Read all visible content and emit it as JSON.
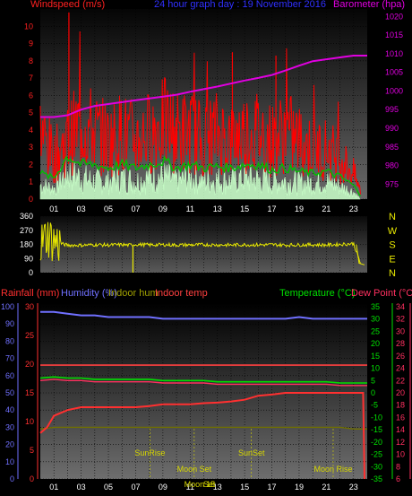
{
  "header": {
    "left_title": "Windspeed (m/s)",
    "center_title": "24 hour graph day : 19 November 2016",
    "right_title": "Barometer (hpa)"
  },
  "colors": {
    "background": "#000000",
    "panel_top": "#050505",
    "panel_bottom": "#707070",
    "grid": "#000000",
    "wind_gust": "#ff0000",
    "wind_avg": "#00c000",
    "wind_speed": "#c8ffc8",
    "barometer": "#e000e0",
    "direction": "#e8e800",
    "rainfall": "#ff3030",
    "humidity": "#7070ff",
    "indoor_hum": "#707000",
    "indoor_temp": "#ff4040",
    "temperature": "#00e000",
    "dew_point": "#ff3060",
    "astro_text": "#d8d800"
  },
  "x_hours": [
    "01",
    "03",
    "05",
    "07",
    "09",
    "11",
    "13",
    "15",
    "17",
    "19",
    "21",
    "23"
  ],
  "chart_data": [
    {
      "type": "line",
      "panel": "wind",
      "title": "24 hour graph day : 19 November 2016",
      "y_left_label": "Windspeed (m/s)",
      "y_left_ticks": [
        "0",
        "1",
        "2",
        "3",
        "4",
        "5",
        "6",
        "7",
        "8",
        "9",
        "10"
      ],
      "y_left_range": [
        0,
        11
      ],
      "y_right_label": "Barometer (hpa)",
      "y_right_ticks": [
        "975",
        "980",
        "985",
        "990",
        "995",
        "1000",
        "1005",
        "1010",
        "1015",
        "1020"
      ],
      "y_right_range": [
        971,
        1022
      ],
      "x_range_hours": [
        0,
        24
      ],
      "x_ticks": [
        "01",
        "03",
        "05",
        "07",
        "09",
        "11",
        "13",
        "15",
        "17",
        "19",
        "21",
        "23"
      ],
      "series": [
        {
          "key": "barometer",
          "x": [
            0,
            1,
            2,
            3,
            4,
            5,
            6,
            7,
            8,
            9,
            10,
            11,
            12,
            13,
            14,
            15,
            16,
            17,
            18,
            19,
            20,
            21,
            22,
            23,
            24
          ],
          "values": [
            993,
            993,
            993.5,
            995,
            996,
            996.5,
            997,
            997.5,
            998,
            998.5,
            999,
            999.8,
            1000.5,
            1001.2,
            1002,
            1002.8,
            1003.5,
            1004.3,
            1005.5,
            1006.8,
            1008,
            1008.5,
            1009,
            1009.5,
            1009.5
          ]
        },
        {
          "key": "wind_gust",
          "x": [
            0,
            1,
            2,
            3,
            4,
            5,
            6,
            7,
            8,
            9,
            10,
            11,
            12,
            13,
            14,
            15,
            16,
            17,
            18,
            19,
            20,
            21,
            22,
            23,
            23.5
          ],
          "values": [
            4,
            2.5,
            3.5,
            4.5,
            4,
            3.5,
            4,
            3.5,
            4,
            4.5,
            4,
            4,
            3.5,
            4,
            3.5,
            4,
            4,
            3.5,
            4,
            3.5,
            3,
            3,
            2.5,
            1.5,
            0.5
          ]
        },
        {
          "key": "wind_avg",
          "x": [
            0,
            1,
            2,
            3,
            4,
            5,
            6,
            7,
            8,
            9,
            10,
            11,
            12,
            13,
            14,
            15,
            16,
            17,
            18,
            19,
            20,
            21,
            22,
            23,
            23.5
          ],
          "values": [
            1.5,
            1.2,
            2.5,
            2,
            2,
            1.8,
            2,
            1.8,
            2,
            2.2,
            1.8,
            2,
            1.8,
            1.9,
            1.8,
            2,
            2,
            1.7,
            1.8,
            1.6,
            1.5,
            1.6,
            1.3,
            0.8,
            0.2
          ]
        },
        {
          "key": "wind_speed",
          "x": [
            0,
            1,
            2,
            3,
            4,
            5,
            6,
            7,
            8,
            9,
            10,
            11,
            12,
            13,
            14,
            15,
            16,
            17,
            18,
            19,
            20,
            21,
            22,
            23,
            23.5
          ],
          "values": [
            0.8,
            0.6,
            1.5,
            1.2,
            1,
            1,
            1.2,
            1,
            1.2,
            1.3,
            1,
            1.2,
            1,
            1.1,
            1,
            1.2,
            1.1,
            1,
            1,
            0.9,
            0.9,
            1,
            0.7,
            0.4,
            0
          ]
        }
      ]
    },
    {
      "type": "scatter",
      "panel": "direction",
      "y_left_ticks": [
        "360",
        "270",
        "180",
        "90",
        "0"
      ],
      "y_range": [
        0,
        360
      ],
      "compass_labels": [
        "N",
        "W",
        "S",
        "E",
        "N"
      ],
      "x_range_hours": [
        0,
        24
      ],
      "series": [
        {
          "key": "direction",
          "x": [
            0,
            0.5,
            1,
            1.5,
            2,
            3,
            4,
            5,
            6,
            6.5,
            7,
            8,
            9,
            10,
            11,
            12,
            13,
            14,
            15,
            16,
            17,
            18,
            19,
            20,
            21,
            22,
            23,
            23.5
          ],
          "values": [
            180,
            240,
            200,
            185,
            175,
            175,
            178,
            176,
            178,
            175,
            180,
            177,
            178,
            176,
            177,
            178,
            177,
            176,
            178,
            177,
            178,
            176,
            177,
            178,
            176,
            180,
            185,
            60
          ]
        }
      ]
    },
    {
      "type": "line",
      "panel": "temperature",
      "legend_left": [
        "Rainfall (mm)",
        "Humidity (%)",
        "Indoor hum",
        "Indoor temp"
      ],
      "legend_right": [
        "Temperature (°C)",
        "Dew Point (°C)"
      ],
      "y_left_ticks": [
        "0",
        "10",
        "20",
        "30",
        "40",
        "50",
        "60",
        "70",
        "80",
        "90",
        "100"
      ],
      "y_left_range": [
        0,
        100
      ],
      "y_left2_ticks": [
        "0",
        "5",
        "10",
        "15",
        "20",
        "25",
        "30"
      ],
      "y_left2_range": [
        0,
        30
      ],
      "y_right_ticks": [
        "35",
        "30",
        "25",
        "20",
        "15",
        "10",
        "5",
        "0",
        "-5",
        "-10",
        "-15",
        "-20",
        "-25",
        "-30",
        "-35"
      ],
      "y_right_range": [
        -35,
        35
      ],
      "y_right2_ticks": [
        "34",
        "32",
        "30",
        "28",
        "26",
        "24",
        "22",
        "20",
        "18",
        "16",
        "14",
        "12",
        "10",
        "8",
        "6"
      ],
      "y_right2_range": [
        6,
        34
      ],
      "x_range_hours": [
        0,
        24
      ],
      "x_ticks": [
        "01",
        "03",
        "05",
        "07",
        "09",
        "11",
        "13",
        "15",
        "17",
        "19",
        "21",
        "23"
      ],
      "series": [
        {
          "key": "humidity",
          "axis": "left",
          "x": [
            0,
            1,
            2,
            3,
            4,
            5,
            6,
            7,
            8,
            9,
            10,
            11,
            12,
            13,
            14,
            15,
            16,
            17,
            18,
            19,
            20,
            21,
            22,
            23,
            24
          ],
          "values": [
            97,
            97,
            96,
            95,
            95,
            94,
            94,
            94,
            94,
            93,
            93,
            93,
            93,
            93,
            93,
            93,
            93,
            93,
            93,
            94,
            93,
            93,
            93,
            93,
            93
          ]
        },
        {
          "key": "temperature",
          "axis": "right",
          "x": [
            0,
            1,
            2,
            3,
            4,
            5,
            6,
            7,
            8,
            9,
            10,
            11,
            12,
            13,
            14,
            15,
            16,
            17,
            18,
            19,
            20,
            21,
            22,
            23,
            24
          ],
          "values": [
            6,
            6.5,
            6,
            6,
            5.5,
            5.5,
            5.5,
            5.5,
            5.5,
            5,
            5,
            5,
            5,
            4.5,
            4.5,
            4.5,
            4.5,
            4.5,
            4.5,
            4.5,
            4.5,
            4.5,
            4,
            4,
            4
          ]
        },
        {
          "key": "dew_point",
          "axis": "right",
          "x": [
            0,
            1,
            2,
            3,
            4,
            5,
            6,
            7,
            8,
            9,
            10,
            11,
            12,
            13,
            14,
            15,
            16,
            17,
            18,
            19,
            20,
            21,
            22,
            23,
            24
          ],
          "values": [
            5,
            5.5,
            5,
            5,
            4.5,
            4.5,
            4.5,
            4.5,
            4.5,
            4,
            4,
            4,
            4,
            3.5,
            3.5,
            3.5,
            3.5,
            3.5,
            3.5,
            3.5,
            3.5,
            3.5,
            3,
            3,
            3
          ]
        },
        {
          "key": "indoor_temp",
          "axis": "right2",
          "x": [
            0,
            1,
            2,
            3,
            4,
            5,
            6,
            7,
            8,
            9,
            10,
            11,
            12,
            13,
            14,
            15,
            16,
            17,
            18,
            19,
            20,
            21,
            22,
            23,
            24
          ],
          "values": [
            24.5,
            24.5,
            24.5,
            24.5,
            24.5,
            24.5,
            24.5,
            24.5,
            24.5,
            24.5,
            24.5,
            24.5,
            24.5,
            24.5,
            24.5,
            24.5,
            24.5,
            24.5,
            24.5,
            24.5,
            24.5,
            24.5,
            24.5,
            24.5,
            24.5
          ]
        },
        {
          "key": "indoor_hum",
          "axis": "left",
          "x": [
            0,
            1,
            2,
            3,
            4,
            5,
            6,
            7,
            8,
            9,
            10,
            11,
            12,
            13,
            14,
            15,
            16,
            17,
            18,
            19,
            20,
            21,
            22,
            23,
            24
          ],
          "values": [
            29,
            30,
            30,
            30,
            30,
            30,
            30,
            30,
            30,
            30,
            30,
            30,
            30,
            30,
            30,
            30,
            30,
            30,
            30,
            30,
            30,
            30,
            30,
            29,
            29
          ]
        },
        {
          "key": "rainfall",
          "axis": "left2",
          "x": [
            0,
            0.5,
            1,
            2,
            3,
            4,
            5,
            6,
            7,
            8,
            9,
            10,
            11,
            12,
            13,
            14,
            15,
            16,
            17,
            18,
            19,
            20,
            21,
            22,
            23,
            23.7,
            23.8
          ],
          "values": [
            8,
            9,
            11,
            12,
            12.5,
            12.5,
            12.5,
            12.5,
            12.5,
            12.7,
            13,
            13,
            13,
            13.2,
            13.3,
            13.5,
            13.8,
            14.5,
            14.7,
            15,
            15,
            15,
            15,
            15,
            15,
            15,
            0
          ]
        }
      ],
      "astro": [
        {
          "label": "SunRise",
          "hour": 8.05
        },
        {
          "label": "SunSet",
          "hour": 15.5
        },
        {
          "label": "Moon Set",
          "hour": 11.3
        },
        {
          "label": "Moon Rise",
          "hour": 21.5
        },
        {
          "label": "Moon",
          "hour": 11.3
        },
        {
          "label": "Set",
          "hour": 12.4
        },
        {
          "label": "15",
          "hour": 12.5
        }
      ]
    }
  ]
}
